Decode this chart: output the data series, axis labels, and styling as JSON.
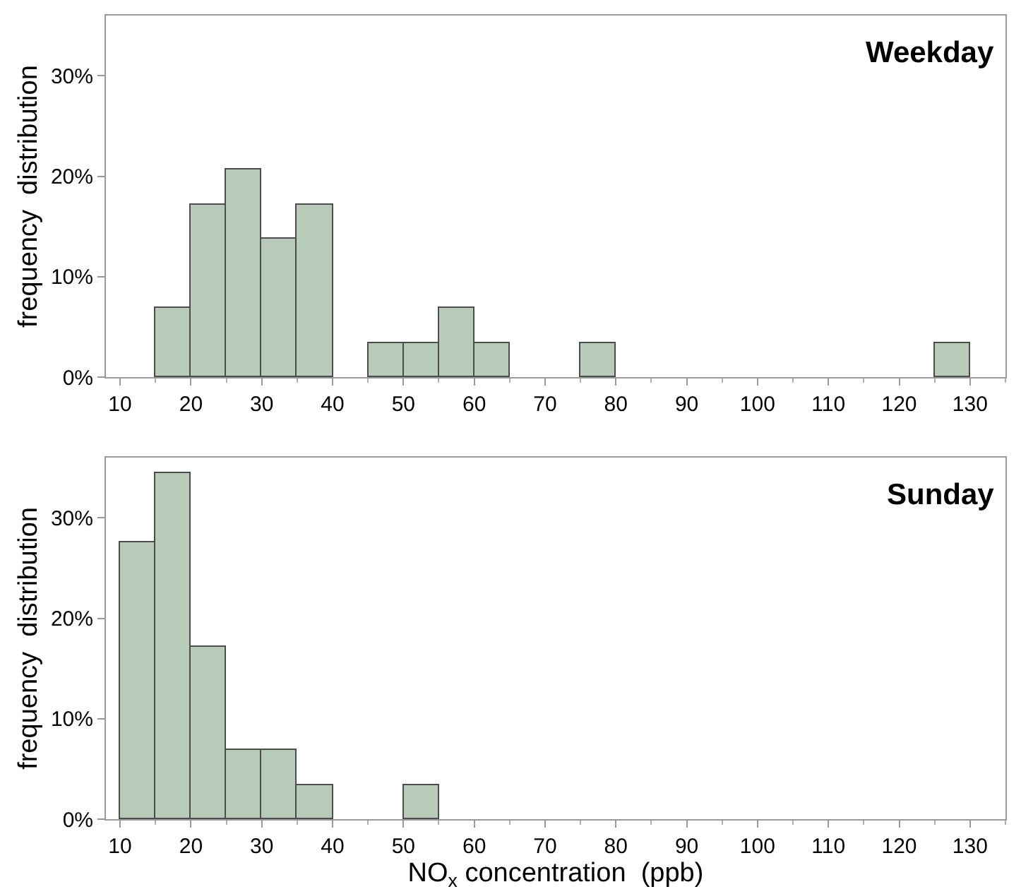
{
  "chart_data": [
    {
      "type": "histogram",
      "ylabel": "frequency  distribution",
      "annotations": [
        "Weekday"
      ],
      "color": "#b9cbb9",
      "bins": [
        10,
        15,
        20,
        25,
        30,
        35,
        40,
        45,
        50,
        55,
        60,
        65,
        70,
        75,
        80,
        85,
        90,
        95,
        100,
        105,
        110,
        115,
        120,
        125,
        130
      ],
      "values": [
        0,
        6.9,
        17.2,
        20.7,
        13.8,
        17.2,
        0,
        3.4,
        3.4,
        6.9,
        3.4,
        0,
        0,
        3.4,
        0,
        0,
        0,
        0,
        0,
        0,
        0,
        0,
        0,
        3.4
      ],
      "xlim": [
        8,
        135
      ],
      "xticks": [
        10,
        20,
        30,
        40,
        50,
        60,
        70,
        80,
        90,
        100,
        110,
        120,
        130
      ],
      "ylim": [
        0,
        36
      ],
      "yticks": [
        {
          "value": 0,
          "label": "0%"
        },
        {
          "value": 10,
          "label": "10%"
        },
        {
          "value": 20,
          "label": "20%"
        },
        {
          "value": 30,
          "label": "30%"
        }
      ]
    },
    {
      "type": "histogram",
      "ylabel": "frequency  distribution",
      "xlabel": "NO$_{x}$ concentration  (ppb)",
      "annotations": [
        "Sunday"
      ],
      "color": "#b9cbb9",
      "bins": [
        10,
        15,
        20,
        25,
        30,
        35,
        40,
        45,
        50,
        55,
        60,
        65,
        70,
        75,
        80,
        85,
        90,
        95,
        100,
        105,
        110,
        115,
        120,
        125,
        130
      ],
      "values": [
        27.6,
        34.5,
        17.2,
        6.9,
        6.9,
        3.4,
        0,
        0,
        3.4,
        0,
        0,
        0,
        0,
        0,
        0,
        0,
        0,
        0,
        0,
        0,
        0,
        0,
        0,
        0
      ],
      "xlim": [
        8,
        135
      ],
      "xticks": [
        10,
        20,
        30,
        40,
        50,
        60,
        70,
        80,
        90,
        100,
        110,
        120,
        130
      ],
      "ylim": [
        0,
        36
      ],
      "yticks": [
        {
          "value": 0,
          "label": "0%"
        },
        {
          "value": 10,
          "label": "10%"
        },
        {
          "value": 20,
          "label": "20%"
        },
        {
          "value": 30,
          "label": "30%"
        }
      ]
    }
  ]
}
